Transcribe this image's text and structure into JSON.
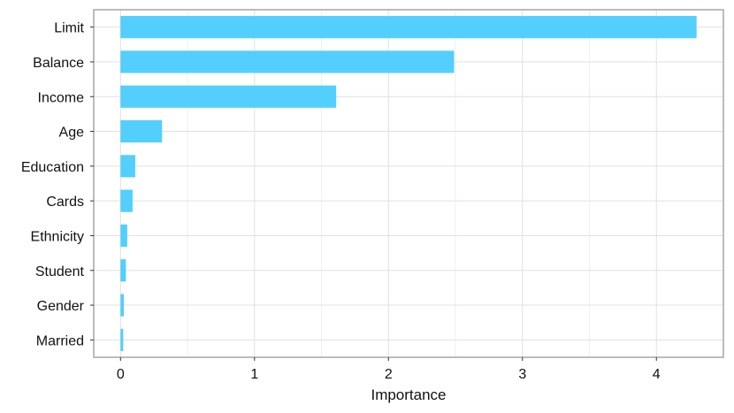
{
  "chart_data": {
    "type": "bar",
    "orientation": "horizontal",
    "categories": [
      "Limit",
      "Balance",
      "Income",
      "Age",
      "Education",
      "Cards",
      "Ethnicity",
      "Student",
      "Gender",
      "Married"
    ],
    "values": [
      4.3,
      2.49,
      1.61,
      0.31,
      0.11,
      0.09,
      0.05,
      0.04,
      0.025,
      0.02
    ],
    "xlabel": "Importance",
    "ylabel": "",
    "xlim": [
      -0.2,
      4.5
    ],
    "xticks": [
      0,
      1,
      2,
      3,
      4
    ],
    "grid": true,
    "bar_color": "#52cffd",
    "grid_color": "#e0e0e0",
    "frame_color": "#a6a6a6"
  }
}
